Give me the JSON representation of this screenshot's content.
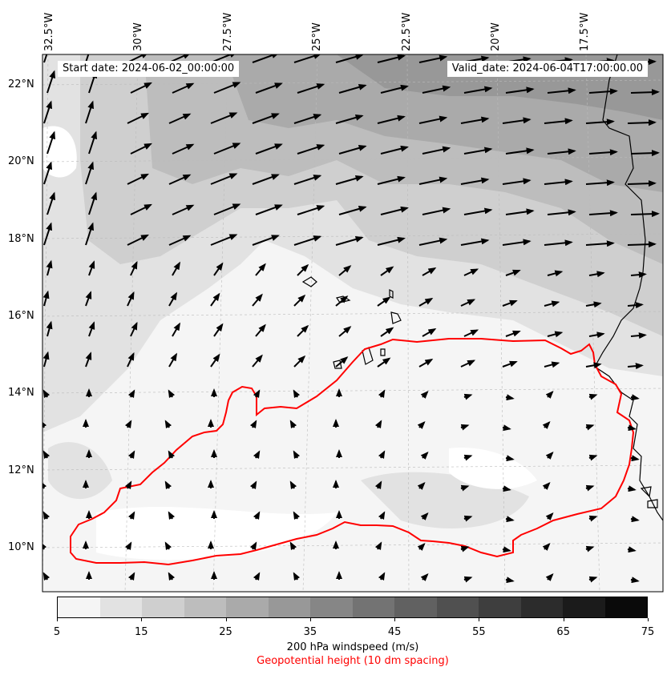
{
  "header": {
    "start_date": "Start date: 2024-06-02_00:00:00",
    "valid_date": "Valid_date: 2024-06-04T17:00:00.00"
  },
  "longitude_labels": [
    "32.5°W",
    "30°W",
    "27.5°W",
    "25°W",
    "22.5°W",
    "20°W",
    "17.5°W"
  ],
  "latitude_labels": [
    "22°N",
    "20°N",
    "18°N",
    "16°N",
    "14°N",
    "12°N",
    "10°N"
  ],
  "colorbar": {
    "ticks": [
      "5",
      "15",
      "25",
      "35",
      "45",
      "55",
      "65",
      "75"
    ],
    "colors": [
      "#f5f5f5",
      "#e2e2e2",
      "#cfcfcf",
      "#bdbdbd",
      "#aaaaaa",
      "#989898",
      "#868686",
      "#737373",
      "#616161",
      "#505050",
      "#3e3e3e",
      "#2c2c2c",
      "#1b1b1b",
      "#0a0a0a"
    ],
    "label": "200 hPa windspeed (m/s)",
    "sublabel": "Geopotential height (10 dm spacing)",
    "sublabel_color": "#ff0000"
  },
  "contour_color": "#ff0000"
}
